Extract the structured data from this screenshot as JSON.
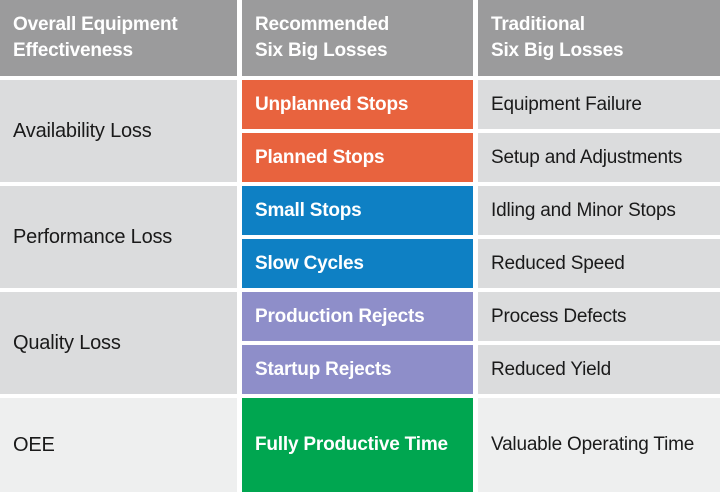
{
  "colors": {
    "header_bg": "#9B9B9C",
    "row_bg": "#DBDCDD",
    "oee_row_bg": "#EEEFEF",
    "divider": "#FFFFFF",
    "availability_accent": "#E8633E",
    "performance_accent": "#0E80C4",
    "quality_accent": "#8E8EC9",
    "oee_accent": "#00A650",
    "header_text": "#FFFFFF",
    "cell_text": "#1A1A1A"
  },
  "header": {
    "col1": "Overall Equipment\nEffectiveness",
    "col2": "Recommended\nSix Big Losses",
    "col3": "Traditional\nSix Big Losses"
  },
  "groups": [
    {
      "category": "Availability Loss",
      "rows": [
        {
          "recommended": "Unplanned Stops",
          "traditional": "Equipment Failure"
        },
        {
          "recommended": "Planned Stops",
          "traditional": "Setup and Adjustments"
        }
      ]
    },
    {
      "category": "Performance Loss",
      "rows": [
        {
          "recommended": "Small Stops",
          "traditional": "Idling and Minor Stops"
        },
        {
          "recommended": "Slow Cycles",
          "traditional": "Reduced Speed"
        }
      ]
    },
    {
      "category": "Quality Loss",
      "rows": [
        {
          "recommended": "Production Rejects",
          "traditional": "Process Defects"
        },
        {
          "recommended": "Startup Rejects",
          "traditional": "Reduced Yield"
        }
      ]
    },
    {
      "category": "OEE",
      "rows": [
        {
          "recommended": "Fully Productive Time",
          "traditional": "Valuable Operating Time"
        }
      ]
    }
  ]
}
